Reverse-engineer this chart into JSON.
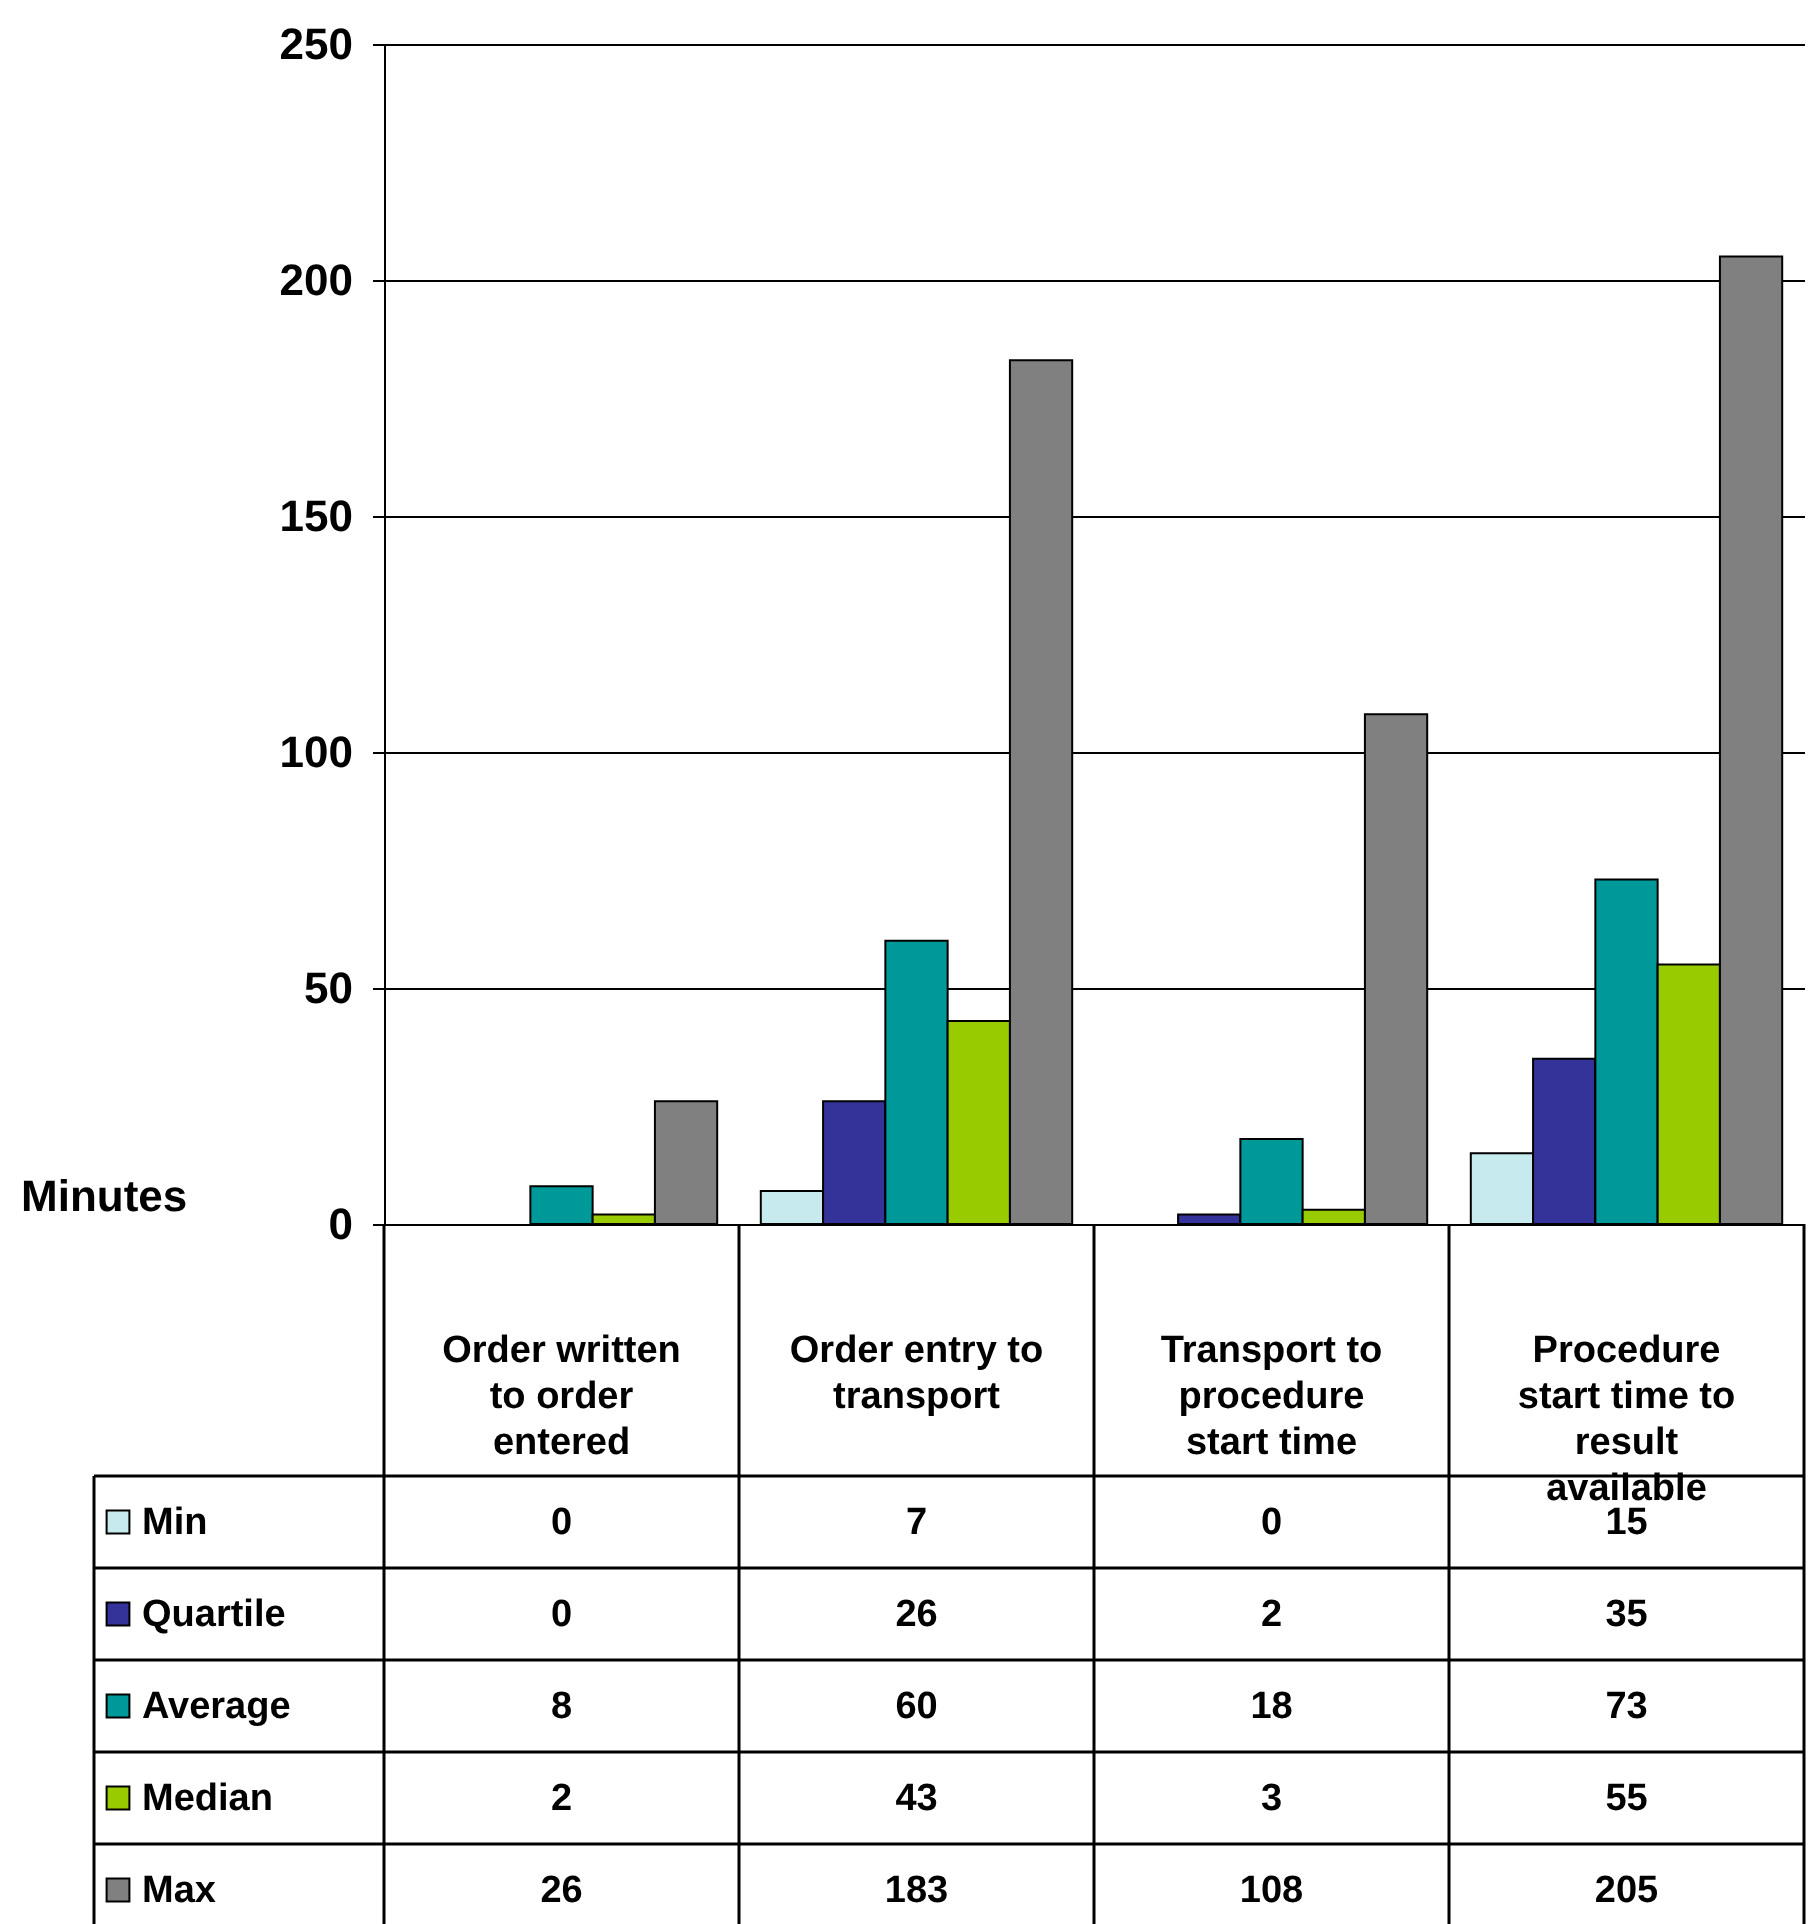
{
  "chart_data": {
    "type": "bar",
    "ylabel": "Minutes",
    "categories": [
      "Order written to order entered",
      "Order entry to transport",
      "Transport to procedure start time",
      "Procedure start time to result available"
    ],
    "series": [
      {
        "name": "Min",
        "color": "#c6eaee",
        "values": [
          0,
          7,
          0,
          15
        ]
      },
      {
        "name": "Quartile",
        "color": "#333399",
        "values": [
          0,
          26,
          2,
          35
        ]
      },
      {
        "name": "Average",
        "color": "#009999",
        "values": [
          8,
          60,
          18,
          73
        ]
      },
      {
        "name": "Median",
        "color": "#99cc00",
        "values": [
          2,
          43,
          3,
          55
        ]
      },
      {
        "name": "Max",
        "color": "#808080",
        "values": [
          26,
          183,
          108,
          205
        ]
      }
    ],
    "ylim": [
      0,
      250
    ],
    "yticks": [
      0,
      50,
      100,
      150,
      200,
      250
    ],
    "grid": "y",
    "legend": "bottom",
    "data_labels": true
  }
}
